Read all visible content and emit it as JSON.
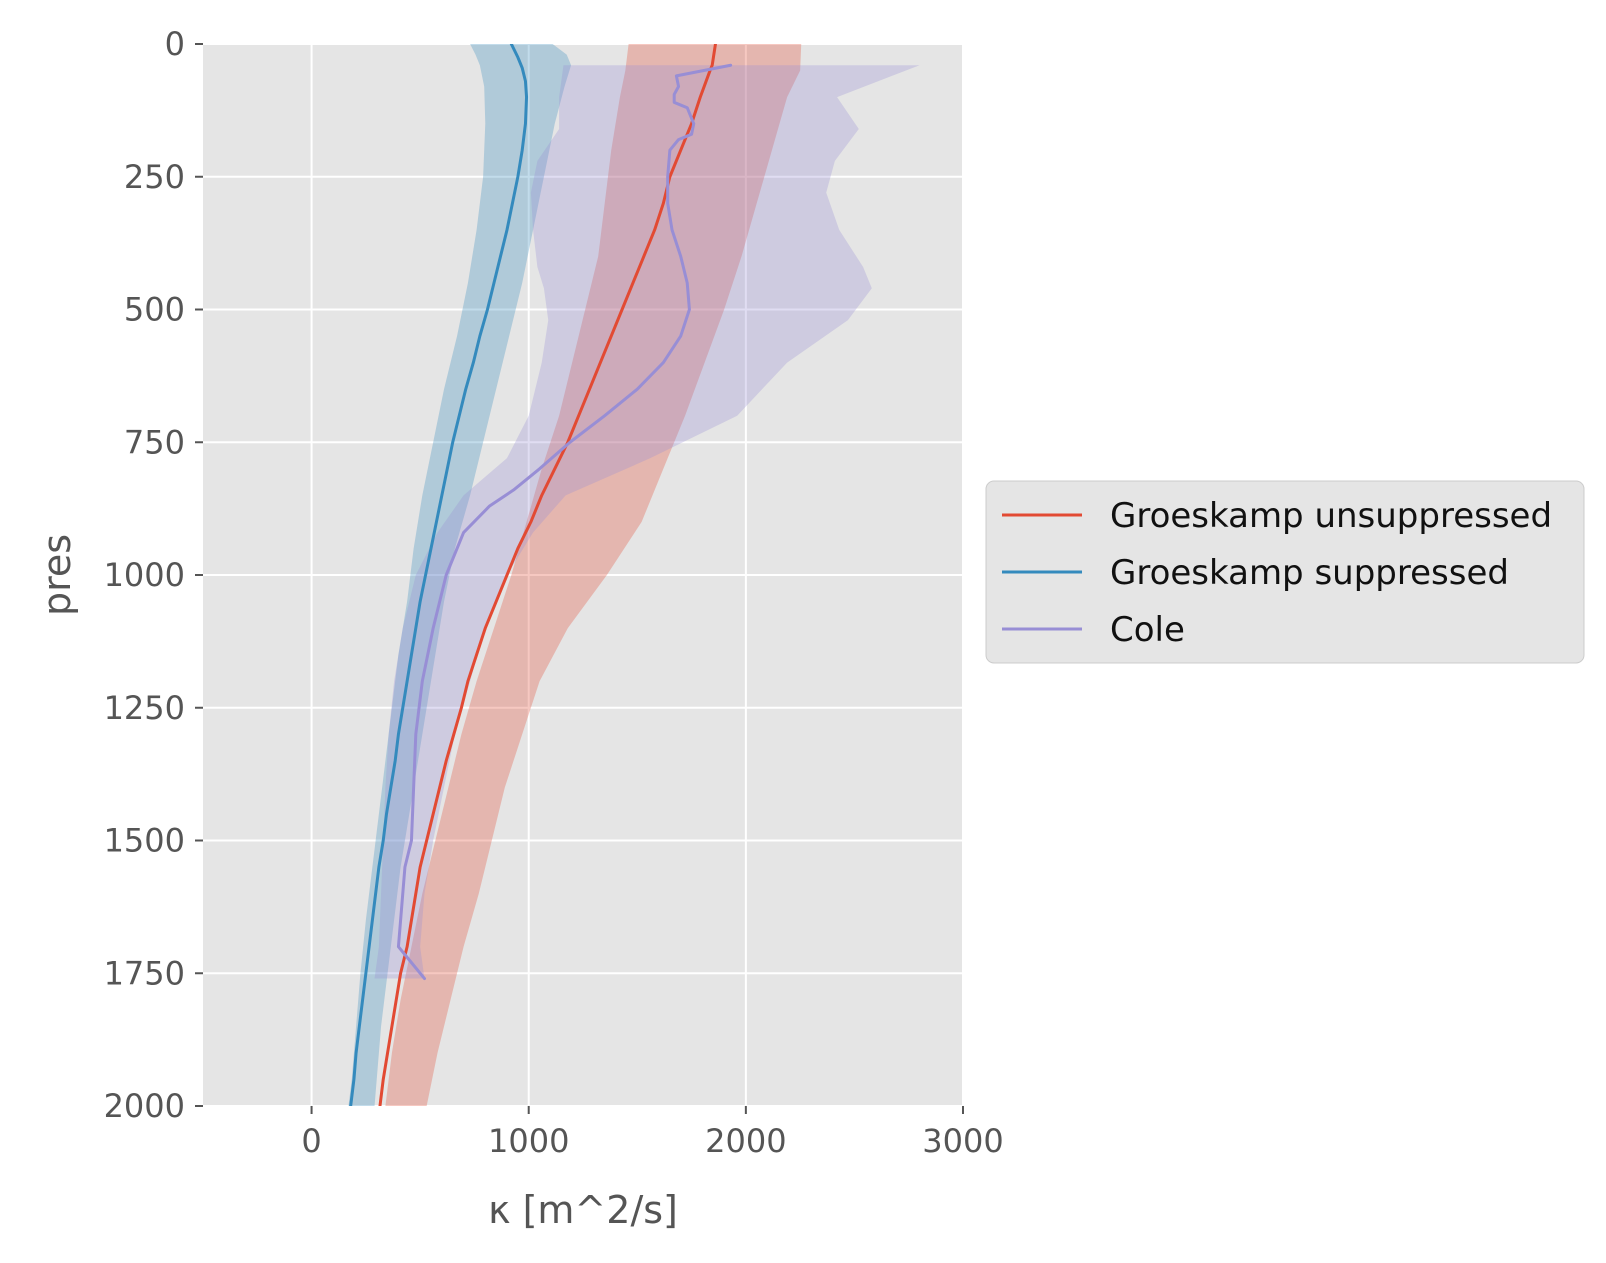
{
  "chart_data": {
    "type": "line",
    "xlabel": "κ [m^2/s]",
    "ylabel": "pres",
    "xlim": [
      -500,
      3000
    ],
    "ylim": [
      2000,
      0
    ],
    "y_inverted": true,
    "grid": true,
    "legend_position": "outside-right",
    "xticks": [
      0,
      1000,
      2000,
      3000
    ],
    "yticks": [
      0,
      250,
      500,
      750,
      1000,
      1250,
      1500,
      1750,
      2000
    ],
    "series": [
      {
        "name": "Groeskamp unsuppressed",
        "color": "#E24A33",
        "points": [
          [
            1860,
            0
          ],
          [
            1845,
            40
          ],
          [
            1835,
            50
          ],
          [
            1790,
            100
          ],
          [
            1750,
            150
          ],
          [
            1700,
            200
          ],
          [
            1650,
            250
          ],
          [
            1620,
            300
          ],
          [
            1580,
            350
          ],
          [
            1530,
            400
          ],
          [
            1480,
            450
          ],
          [
            1430,
            500
          ],
          [
            1380,
            550
          ],
          [
            1330,
            600
          ],
          [
            1280,
            650
          ],
          [
            1230,
            700
          ],
          [
            1180,
            750
          ],
          [
            1120,
            800
          ],
          [
            1060,
            850
          ],
          [
            1010,
            900
          ],
          [
            950,
            950
          ],
          [
            900,
            1000
          ],
          [
            850,
            1050
          ],
          [
            800,
            1100
          ],
          [
            760,
            1150
          ],
          [
            720,
            1200
          ],
          [
            690,
            1250
          ],
          [
            655,
            1300
          ],
          [
            620,
            1350
          ],
          [
            590,
            1400
          ],
          [
            560,
            1450
          ],
          [
            530,
            1500
          ],
          [
            500,
            1550
          ],
          [
            480,
            1600
          ],
          [
            460,
            1650
          ],
          [
            440,
            1700
          ],
          [
            410,
            1750
          ],
          [
            390,
            1800
          ],
          [
            370,
            1850
          ],
          [
            350,
            1900
          ],
          [
            330,
            1950
          ],
          [
            315,
            2000
          ]
        ],
        "band": [
          [
            1460,
            2255,
            0
          ],
          [
            1445,
            2250,
            50
          ],
          [
            1420,
            2190,
            100
          ],
          [
            1380,
            2120,
            200
          ],
          [
            1350,
            2050,
            300
          ],
          [
            1320,
            1980,
            400
          ],
          [
            1260,
            1900,
            500
          ],
          [
            1200,
            1810,
            600
          ],
          [
            1140,
            1720,
            700
          ],
          [
            1060,
            1620,
            800
          ],
          [
            990,
            1520,
            900
          ],
          [
            920,
            1360,
            1000
          ],
          [
            840,
            1180,
            1100
          ],
          [
            760,
            1050,
            1200
          ],
          [
            690,
            970,
            1300
          ],
          [
            630,
            890,
            1400
          ],
          [
            570,
            830,
            1500
          ],
          [
            510,
            770,
            1600
          ],
          [
            460,
            700,
            1700
          ],
          [
            410,
            640,
            1800
          ],
          [
            370,
            580,
            1900
          ],
          [
            340,
            530,
            2000
          ]
        ]
      },
      {
        "name": "Groeskamp suppressed",
        "color": "#348ABD",
        "points": [
          [
            920,
            0
          ],
          [
            950,
            25
          ],
          [
            970,
            45
          ],
          [
            985,
            70
          ],
          [
            990,
            100
          ],
          [
            985,
            150
          ],
          [
            970,
            200
          ],
          [
            950,
            250
          ],
          [
            925,
            300
          ],
          [
            900,
            350
          ],
          [
            870,
            400
          ],
          [
            840,
            450
          ],
          [
            810,
            500
          ],
          [
            775,
            550
          ],
          [
            745,
            600
          ],
          [
            710,
            650
          ],
          [
            680,
            700
          ],
          [
            650,
            750
          ],
          [
            625,
            800
          ],
          [
            600,
            850
          ],
          [
            575,
            900
          ],
          [
            550,
            950
          ],
          [
            525,
            1000
          ],
          [
            500,
            1050
          ],
          [
            480,
            1100
          ],
          [
            460,
            1150
          ],
          [
            440,
            1200
          ],
          [
            420,
            1250
          ],
          [
            400,
            1300
          ],
          [
            385,
            1350
          ],
          [
            365,
            1400
          ],
          [
            345,
            1450
          ],
          [
            330,
            1500
          ],
          [
            310,
            1550
          ],
          [
            295,
            1600
          ],
          [
            280,
            1650
          ],
          [
            265,
            1700
          ],
          [
            250,
            1750
          ],
          [
            235,
            1800
          ],
          [
            220,
            1850
          ],
          [
            205,
            1900
          ],
          [
            195,
            1950
          ],
          [
            180,
            2000
          ]
        ],
        "band": [
          [
            730,
            1110,
            0
          ],
          [
            755,
            1175,
            20
          ],
          [
            775,
            1195,
            40
          ],
          [
            795,
            1165,
            80
          ],
          [
            800,
            1120,
            150
          ],
          [
            790,
            1070,
            250
          ],
          [
            760,
            1020,
            350
          ],
          [
            720,
            970,
            450
          ],
          [
            670,
            910,
            550
          ],
          [
            610,
            850,
            650
          ],
          [
            560,
            790,
            750
          ],
          [
            510,
            730,
            850
          ],
          [
            470,
            660,
            950
          ],
          [
            440,
            610,
            1050
          ],
          [
            400,
            570,
            1150
          ],
          [
            370,
            530,
            1250
          ],
          [
            340,
            490,
            1350
          ],
          [
            310,
            450,
            1450
          ],
          [
            280,
            410,
            1550
          ],
          [
            250,
            380,
            1650
          ],
          [
            225,
            350,
            1750
          ],
          [
            205,
            320,
            1850
          ],
          [
            185,
            300,
            1950
          ],
          [
            170,
            290,
            2000
          ]
        ]
      },
      {
        "name": "Cole",
        "color": "#988ED5",
        "points": [
          [
            1930,
            40
          ],
          [
            1680,
            60
          ],
          [
            1690,
            80
          ],
          [
            1670,
            95
          ],
          [
            1670,
            110
          ],
          [
            1700,
            115
          ],
          [
            1730,
            120
          ],
          [
            1760,
            150
          ],
          [
            1750,
            170
          ],
          [
            1690,
            180
          ],
          [
            1650,
            200
          ],
          [
            1640,
            250
          ],
          [
            1640,
            300
          ],
          [
            1660,
            350
          ],
          [
            1700,
            400
          ],
          [
            1730,
            450
          ],
          [
            1740,
            500
          ],
          [
            1700,
            550
          ],
          [
            1620,
            600
          ],
          [
            1500,
            650
          ],
          [
            1350,
            700
          ],
          [
            1190,
            750
          ],
          [
            1050,
            800
          ],
          [
            930,
            840
          ],
          [
            820,
            870
          ],
          [
            700,
            920
          ],
          [
            620,
            1000
          ],
          [
            560,
            1100
          ],
          [
            510,
            1200
          ],
          [
            480,
            1300
          ],
          [
            470,
            1400
          ],
          [
            460,
            1500
          ],
          [
            430,
            1550
          ],
          [
            420,
            1600
          ],
          [
            410,
            1650
          ],
          [
            400,
            1700
          ],
          [
            460,
            1730
          ],
          [
            520,
            1760
          ]
        ],
        "band": [
          [
            1160,
            2800,
            40
          ],
          [
            1140,
            2420,
            100
          ],
          [
            1140,
            2520,
            160
          ],
          [
            1040,
            2410,
            220
          ],
          [
            1010,
            2370,
            280
          ],
          [
            1020,
            2430,
            350
          ],
          [
            1040,
            2540,
            420
          ],
          [
            1070,
            2580,
            460
          ],
          [
            1090,
            2470,
            520
          ],
          [
            1060,
            2190,
            600
          ],
          [
            1000,
            1960,
            700
          ],
          [
            900,
            1560,
            780
          ],
          [
            700,
            1170,
            850
          ],
          [
            580,
            1020,
            920
          ],
          [
            480,
            900,
            1000
          ],
          [
            420,
            800,
            1100
          ],
          [
            380,
            730,
            1200
          ],
          [
            355,
            660,
            1300
          ],
          [
            340,
            610,
            1400
          ],
          [
            330,
            560,
            1500
          ],
          [
            320,
            520,
            1600
          ],
          [
            310,
            500,
            1700
          ],
          [
            290,
            520,
            1760
          ]
        ]
      }
    ]
  }
}
